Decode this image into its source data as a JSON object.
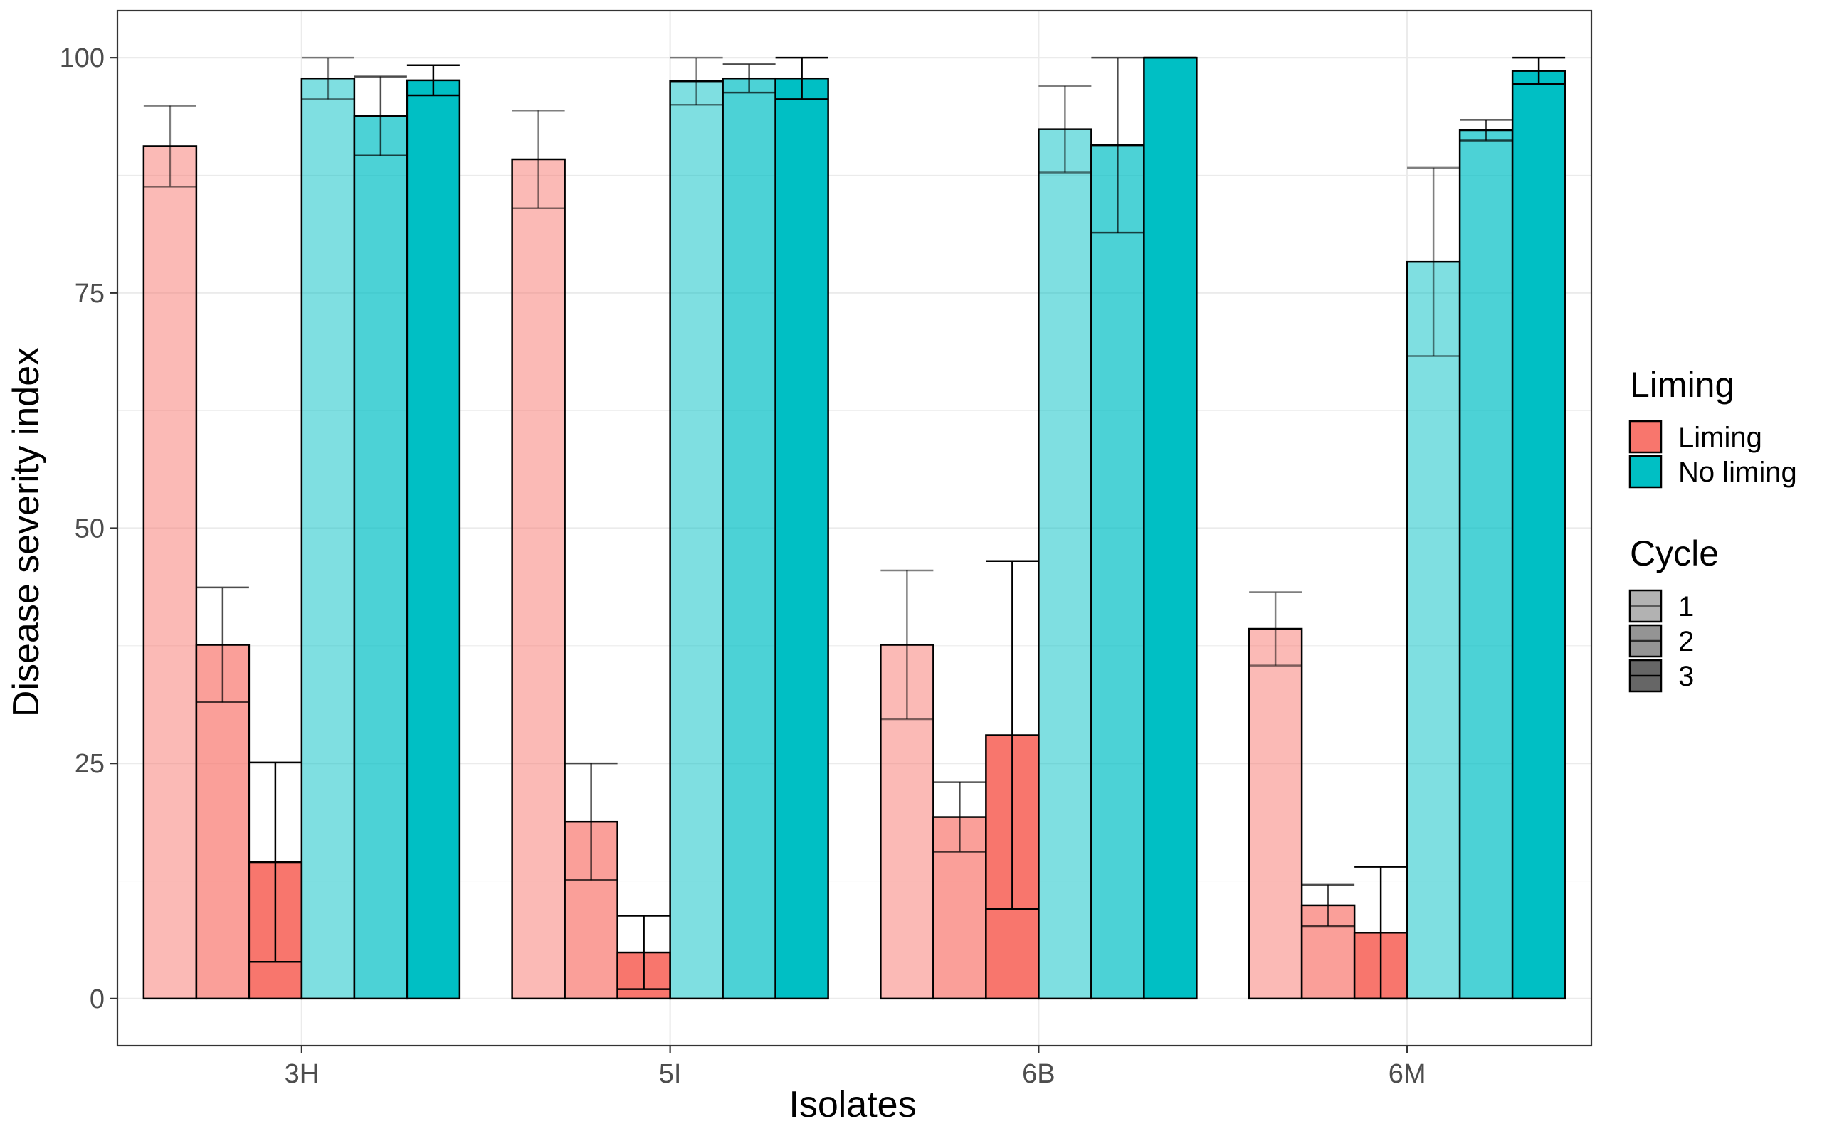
{
  "chart_data": {
    "type": "bar",
    "title": "",
    "xlabel": "Isolates",
    "ylabel": "Disease severity index",
    "categories": [
      "3H",
      "5I",
      "6B",
      "6M"
    ],
    "ylim": [
      -5,
      105
    ],
    "yticks": [
      0,
      25,
      50,
      75,
      100
    ],
    "grid": true,
    "legend_position": "right",
    "colors": {
      "Liming": "#F8766D",
      "No liming": "#00BFC4"
    },
    "cycle_alpha": {
      "1": 0.5,
      "2": 0.7,
      "3": 1.0
    },
    "legends": [
      {
        "title": "Liming",
        "entries": [
          "Liming",
          "No liming"
        ]
      },
      {
        "title": "Cycle",
        "entries": [
          "1",
          "2",
          "3"
        ]
      }
    ],
    "series": [
      {
        "liming": "Liming",
        "cycle": "1",
        "values": [
          90.6,
          89.2,
          37.6,
          39.3
        ],
        "error": [
          4.3,
          5.2,
          7.9,
          3.9
        ]
      },
      {
        "liming": "Liming",
        "cycle": "2",
        "values": [
          37.6,
          18.8,
          19.3,
          9.9
        ],
        "error": [
          6.1,
          6.2,
          3.7,
          2.2
        ]
      },
      {
        "liming": "Liming",
        "cycle": "3",
        "values": [
          14.5,
          4.9,
          28.0,
          7.0
        ],
        "error": [
          10.6,
          3.9,
          18.5,
          7.0
        ]
      },
      {
        "liming": "No liming",
        "cycle": "1",
        "values": [
          97.8,
          97.5,
          92.4,
          78.3
        ],
        "error": [
          2.2,
          2.5,
          4.6,
          10.0
        ]
      },
      {
        "liming": "No liming",
        "cycle": "2",
        "values": [
          93.8,
          97.8,
          90.7,
          92.3
        ],
        "error": [
          4.2,
          1.5,
          9.3,
          1.1
        ]
      },
      {
        "liming": "No liming",
        "cycle": "3",
        "values": [
          97.6,
          97.8,
          100.0,
          98.6
        ],
        "error": [
          1.6,
          2.2,
          0.0,
          1.4
        ]
      }
    ]
  }
}
